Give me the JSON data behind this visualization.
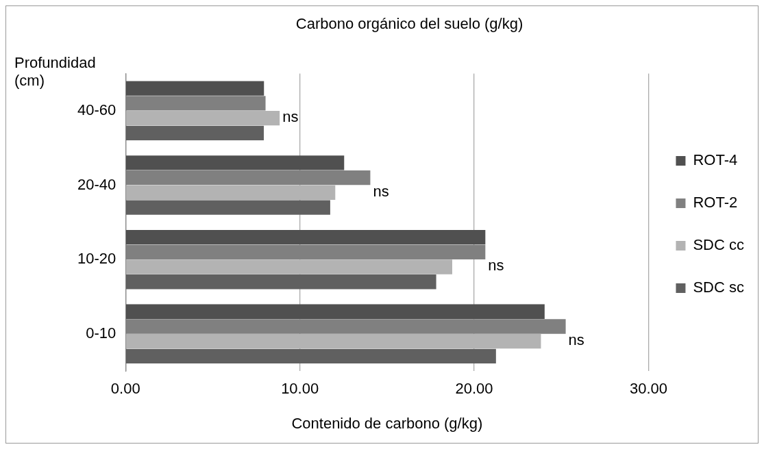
{
  "chart_data": {
    "type": "bar",
    "orientation": "horizontal",
    "title": "Carbono orgánico del suelo (g/kg)",
    "xlabel": "Contenido de carbono (g/kg)",
    "ylabel": "Profundidad (cm)",
    "categories": [
      "40-60",
      "20-40",
      "10-20",
      "0-10"
    ],
    "series": [
      {
        "name": "ROT-4",
        "color": "#505050",
        "values": [
          7.94,
          12.54,
          20.64,
          24.04
        ]
      },
      {
        "name": "ROT-2",
        "color": "#808080",
        "values": [
          8.03,
          14.04,
          20.64,
          25.25
        ]
      },
      {
        "name": "SDC cc",
        "color": "#b3b3b3",
        "values": [
          8.84,
          12.03,
          18.74,
          23.83
        ]
      },
      {
        "name": "SDC sc",
        "color": "#606060",
        "values": [
          7.93,
          11.74,
          17.82,
          21.25
        ]
      }
    ],
    "xlim": [
      0,
      30
    ],
    "xticks": [
      {
        "value": 0,
        "label": "0.00"
      },
      {
        "value": 10,
        "label": "10.00"
      },
      {
        "value": 20,
        "label": "20.00"
      },
      {
        "value": 30,
        "label": "30.00"
      }
    ],
    "grid": "x",
    "legend": "right",
    "annotations": [
      "ns",
      "ns",
      "ns",
      "ns"
    ]
  }
}
